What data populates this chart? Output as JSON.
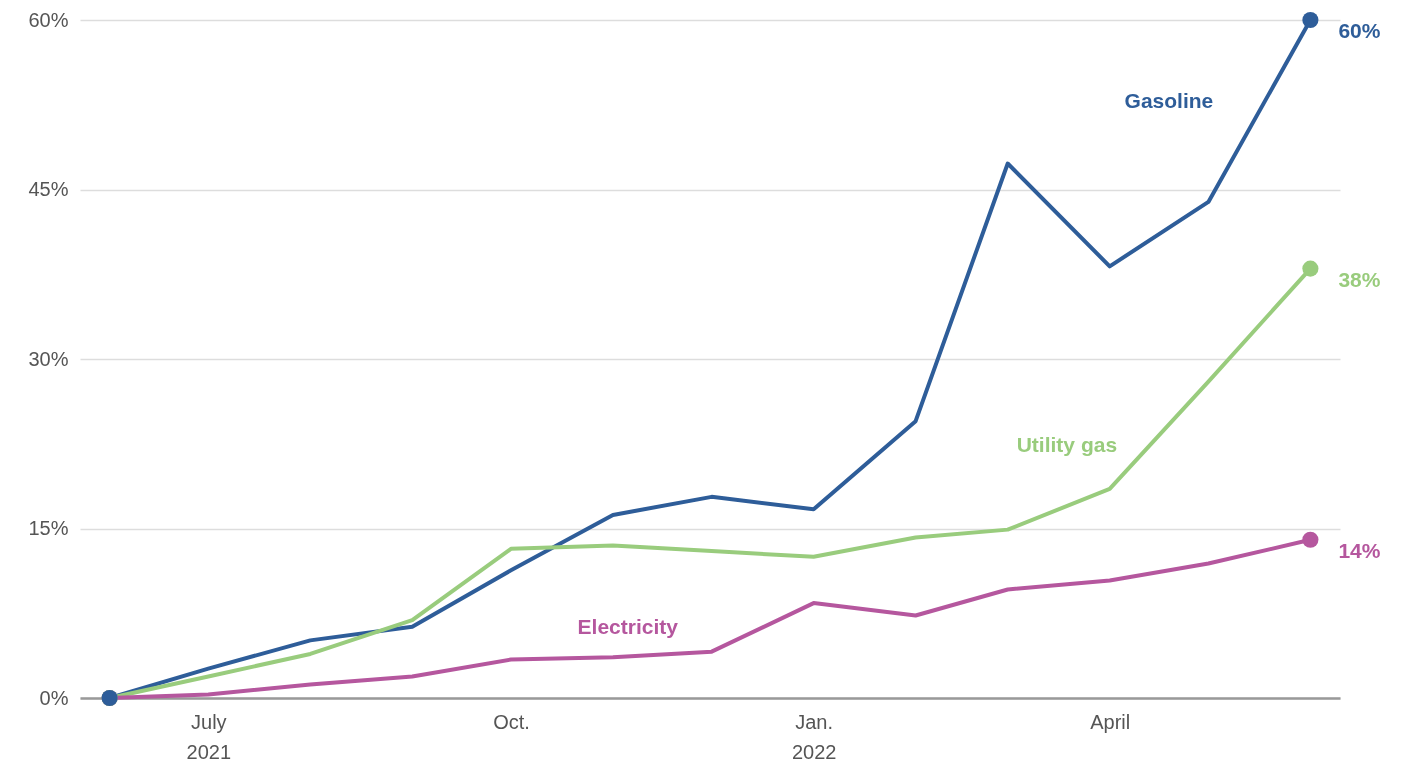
{
  "chart_data": {
    "type": "line",
    "x": [
      "2021-06",
      "2021-07",
      "2021-08",
      "2021-09",
      "2021-10",
      "2021-11",
      "2021-12",
      "2022-01",
      "2022-02",
      "2022-03",
      "2022-04",
      "2022-05",
      "2022-06"
    ],
    "series": [
      {
        "name": "Gasoline",
        "color": "#2e5d99",
        "values": [
          0,
          2.6,
          5.1,
          6.3,
          11.3,
          16.2,
          17.8,
          16.7,
          24.5,
          47.3,
          38.2,
          43.9,
          60
        ],
        "value_labels": [
          null,
          null,
          null,
          null,
          null,
          null,
          null,
          null,
          null,
          null,
          null,
          null,
          "60%"
        ]
      },
      {
        "name": "Utility gas",
        "color": "#99cc7d",
        "values": [
          0,
          1.9,
          3.9,
          6.9,
          13.2,
          13.5,
          13.0,
          12.5,
          14.2,
          14.9,
          18.5,
          28,
          38
        ],
        "value_labels": [
          null,
          null,
          null,
          null,
          null,
          null,
          null,
          null,
          null,
          null,
          null,
          null,
          "38%"
        ]
      },
      {
        "name": "Electricity",
        "color": "#b5579e",
        "values": [
          0,
          0.3,
          1.2,
          1.9,
          3.4,
          3.6,
          4.1,
          8.4,
          7.3,
          9.6,
          10.4,
          11.9,
          14
        ],
        "value_labels": [
          null,
          null,
          null,
          null,
          null,
          null,
          null,
          null,
          null,
          null,
          null,
          null,
          "14%"
        ]
      }
    ],
    "xlim": [
      "2021-05-23",
      "2022-06-10"
    ],
    "xticks": [
      {
        "value": "2021-07",
        "label": "July\n2021"
      },
      {
        "value": "2021-10",
        "label": "Oct."
      },
      {
        "value": "2022-01",
        "label": "Jan.\n2022"
      },
      {
        "value": "2022-04",
        "label": "April"
      }
    ],
    "ylim": [
      0,
      60
    ],
    "yticks": [
      {
        "value": 0,
        "label": "0%"
      },
      {
        "value": 15,
        "label": "15%"
      },
      {
        "value": 30,
        "label": "30%"
      },
      {
        "value": 45,
        "label": "45%"
      },
      {
        "value": 60,
        "label": "60%"
      }
    ],
    "grid": "y"
  }
}
